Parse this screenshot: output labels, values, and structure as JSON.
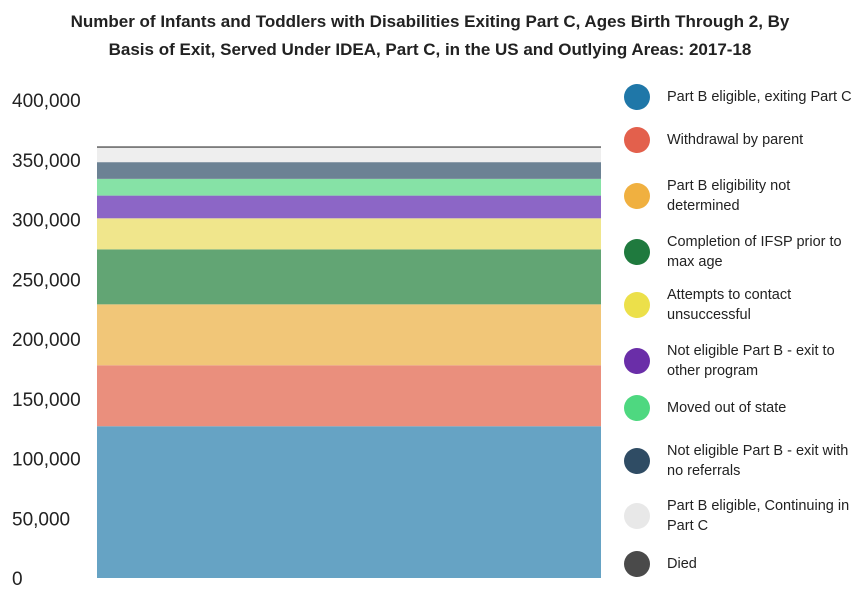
{
  "chart_data": {
    "type": "bar",
    "stacked": true,
    "title_lines": [
      "Number of Infants and Toddlers with Disabilities Exiting Part C, Ages Birth Through 2, By",
      "Basis of Exit, Served Under IDEA, Part C, in the US and Outlying Areas: 2017-18"
    ],
    "xlabel": "",
    "ylabel": "",
    "ylim": [
      0,
      400000
    ],
    "y_ticks": [
      0,
      50000,
      100000,
      150000,
      200000,
      250000,
      300000,
      350000,
      400000
    ],
    "y_tick_labels": [
      "0",
      "50,000",
      "100,000",
      "150,000",
      "200,000",
      "250,000",
      "300,000",
      "350,000",
      "400,000"
    ],
    "grid": false,
    "legend_position": "right",
    "series": [
      {
        "name": "Part B eligible, exiting Part C",
        "value": 127000,
        "color": "#1f77a8",
        "bar_color": "#66a3c4"
      },
      {
        "name": "Withdrawal by parent",
        "value": 51000,
        "color": "#e3604c",
        "bar_color": "#ea8f7d"
      },
      {
        "name": "Part B eligibility not determined",
        "value": 51000,
        "color": "#f0b040",
        "bar_color": "#f1c678"
      },
      {
        "name": "Completion of IFSP prior to max age",
        "value": 46000,
        "color": "#1f7a3e",
        "bar_color": "#62a574"
      },
      {
        "name": "Attempts to contact unsuccessful",
        "value": 26000,
        "color": "#ece04a",
        "bar_color": "#f0e68c"
      },
      {
        "name": "Not eligible Part B - exit to other program",
        "value": 19000,
        "color": "#6a2ea8",
        "bar_color": "#8c66c6"
      },
      {
        "name": "Moved out of state",
        "value": 14000,
        "color": "#4ed880",
        "bar_color": "#86e2a6"
      },
      {
        "name": "Not eligible Part B - exit with no referrals",
        "value": 14000,
        "color": "#2f4c64",
        "bar_color": "#6c8294"
      },
      {
        "name": "Part B eligible, Continuing in Part C",
        "value": 12000,
        "color": "#e8e8e8",
        "bar_color": "#eeeeee"
      },
      {
        "name": "Died",
        "value": 700,
        "color": "#4a4a4a",
        "bar_color": "#6e6e6e"
      }
    ]
  }
}
